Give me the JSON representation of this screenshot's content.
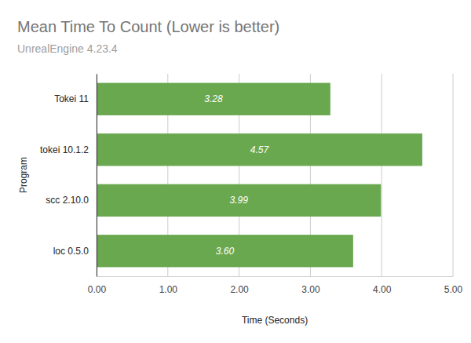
{
  "chart_data": {
    "type": "bar",
    "orientation": "horizontal",
    "title": "Mean Time To Count (Lower is better)",
    "subtitle": "UnrealEngine 4.23.4",
    "x_label": "Time (Seconds)",
    "y_label": "Program",
    "categories": [
      "Tokei 11",
      "tokei 10.1.2",
      "scc 2.10.0",
      "loc 0.5.0"
    ],
    "values": [
      3.28,
      4.57,
      3.99,
      3.6
    ],
    "value_labels": [
      "3.28",
      "4.57",
      "3.99",
      "3.60"
    ],
    "color": "#6aa84f",
    "xlim": [
      0,
      5
    ],
    "xticks": [
      {
        "value": 0,
        "label": "0.00"
      },
      {
        "value": 1,
        "label": "1.00"
      },
      {
        "value": 2,
        "label": "2.00"
      },
      {
        "value": 3,
        "label": "3.00"
      },
      {
        "value": 4,
        "label": "4.00"
      },
      {
        "value": 5,
        "label": "5.00"
      }
    ],
    "grid": true,
    "data_labels": true
  }
}
